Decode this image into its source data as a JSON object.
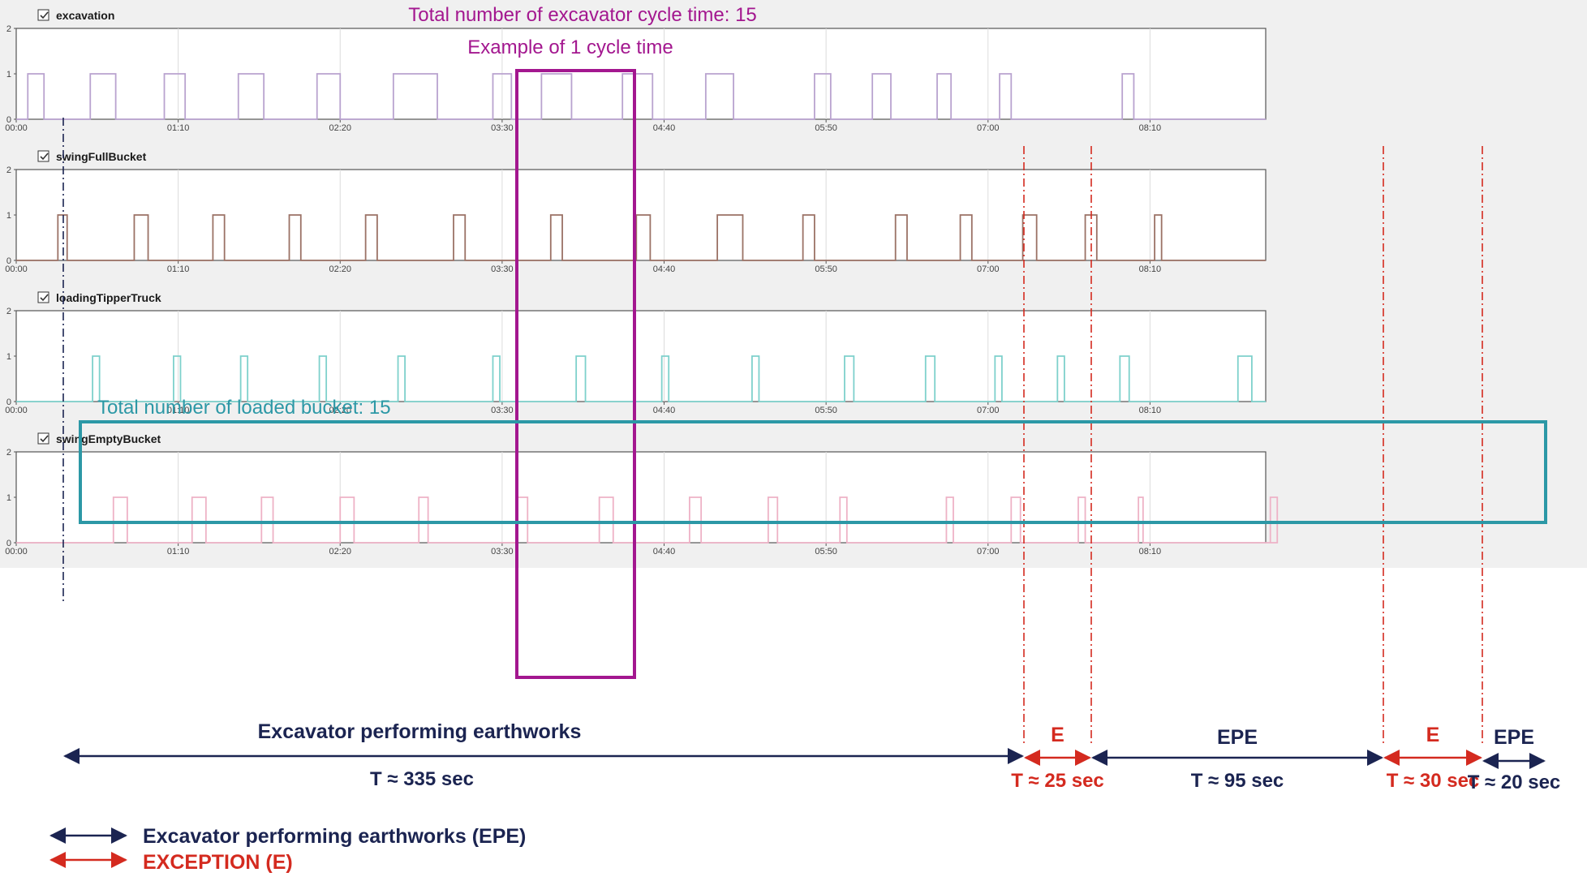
{
  "colors": {
    "panel_bg": "#f0f0f0",
    "plot_bg": "#ffffff",
    "grid": "#dcdcdc",
    "excavation": "#b9a3cf",
    "swingFullBucket": "#9b7266",
    "loadingTipperTruck": "#7ed1cc",
    "swingEmptyBucket": "#eeb2c6",
    "magenta": "#a3178f",
    "teal": "#2c98a6",
    "epe": "#1b2451",
    "exception": "#d42a1f"
  },
  "icons": {
    "checkbox": "checkbox-checked-icon"
  },
  "annotations": {
    "total_cycles": "Total number of excavator cycle time: 15",
    "example_cycle": "Example of 1 cycle time",
    "total_buckets": "Total number of loaded bucket: 15"
  },
  "timeline": {
    "segments": [
      {
        "kind": "EPE",
        "label": "Excavator performing earthworks",
        "duration": "T ≈ 335 sec"
      },
      {
        "kind": "E",
        "label": "E",
        "duration": "T ≈ 25 sec"
      },
      {
        "kind": "EPE",
        "label": "EPE",
        "duration": "T ≈ 95 sec"
      },
      {
        "kind": "E",
        "label": "E",
        "duration": "T ≈ 30 sec"
      },
      {
        "kind": "EPE",
        "label": "EPE",
        "duration": "T ≈ 20 sec"
      }
    ]
  },
  "legend": {
    "epe_label": "Excavator performing earthworks (EPE)",
    "exception_label": "EXCEPTION (E)"
  },
  "chart_data": {
    "type": "line",
    "step": true,
    "x_unit": "seconds",
    "xlim": [
      0,
      540
    ],
    "ylim": [
      0,
      2
    ],
    "yticks": [
      "0",
      "1",
      "2"
    ],
    "xtick_values": [
      0,
      70,
      140,
      210,
      280,
      350,
      420,
      490
    ],
    "xtick_labels": [
      "00:00",
      "01:10",
      "02:20",
      "03:30",
      "04:40",
      "05:50",
      "07:00",
      "08:10"
    ],
    "grid": true,
    "series": [
      {
        "name": "excavation",
        "pulses": [
          [
            5,
            12
          ],
          [
            32,
            43
          ],
          [
            64,
            73
          ],
          [
            96,
            107
          ],
          [
            130,
            140
          ],
          [
            163,
            182
          ],
          [
            206,
            214
          ],
          [
            227,
            240
          ],
          [
            262,
            275
          ],
          [
            298,
            310
          ],
          [
            345,
            352
          ],
          [
            370,
            378
          ],
          [
            398,
            404
          ],
          [
            425,
            430
          ],
          [
            478,
            483
          ]
        ]
      },
      {
        "name": "swingFullBucket",
        "pulses": [
          [
            18,
            22
          ],
          [
            51,
            57
          ],
          [
            85,
            90
          ],
          [
            118,
            123
          ],
          [
            151,
            156
          ],
          [
            189,
            194
          ],
          [
            231,
            236
          ],
          [
            268,
            274
          ],
          [
            303,
            314
          ],
          [
            340,
            345
          ],
          [
            380,
            385
          ],
          [
            408,
            413
          ],
          [
            435,
            441
          ],
          [
            462,
            467
          ],
          [
            492,
            495
          ]
        ]
      },
      {
        "name": "loadingTipperTruck",
        "pulses": [
          [
            33,
            36
          ],
          [
            68,
            71
          ],
          [
            97,
            100
          ],
          [
            131,
            134
          ],
          [
            165,
            168
          ],
          [
            206,
            209
          ],
          [
            242,
            246
          ],
          [
            279,
            282
          ],
          [
            318,
            321
          ],
          [
            358,
            362
          ],
          [
            393,
            397
          ],
          [
            423,
            426
          ],
          [
            450,
            453
          ],
          [
            477,
            481
          ],
          [
            528,
            534
          ]
        ]
      },
      {
        "name": "swingEmptyBucket",
        "pulses": [
          [
            42,
            48
          ],
          [
            76,
            82
          ],
          [
            106,
            111
          ],
          [
            140,
            146
          ],
          [
            174,
            178
          ],
          [
            216,
            221
          ],
          [
            252,
            258
          ],
          [
            291,
            296
          ],
          [
            325,
            329
          ],
          [
            356,
            359
          ],
          [
            402,
            405
          ],
          [
            430,
            434
          ],
          [
            459,
            462
          ],
          [
            485,
            487
          ],
          [
            542,
            545
          ]
        ]
      }
    ]
  }
}
